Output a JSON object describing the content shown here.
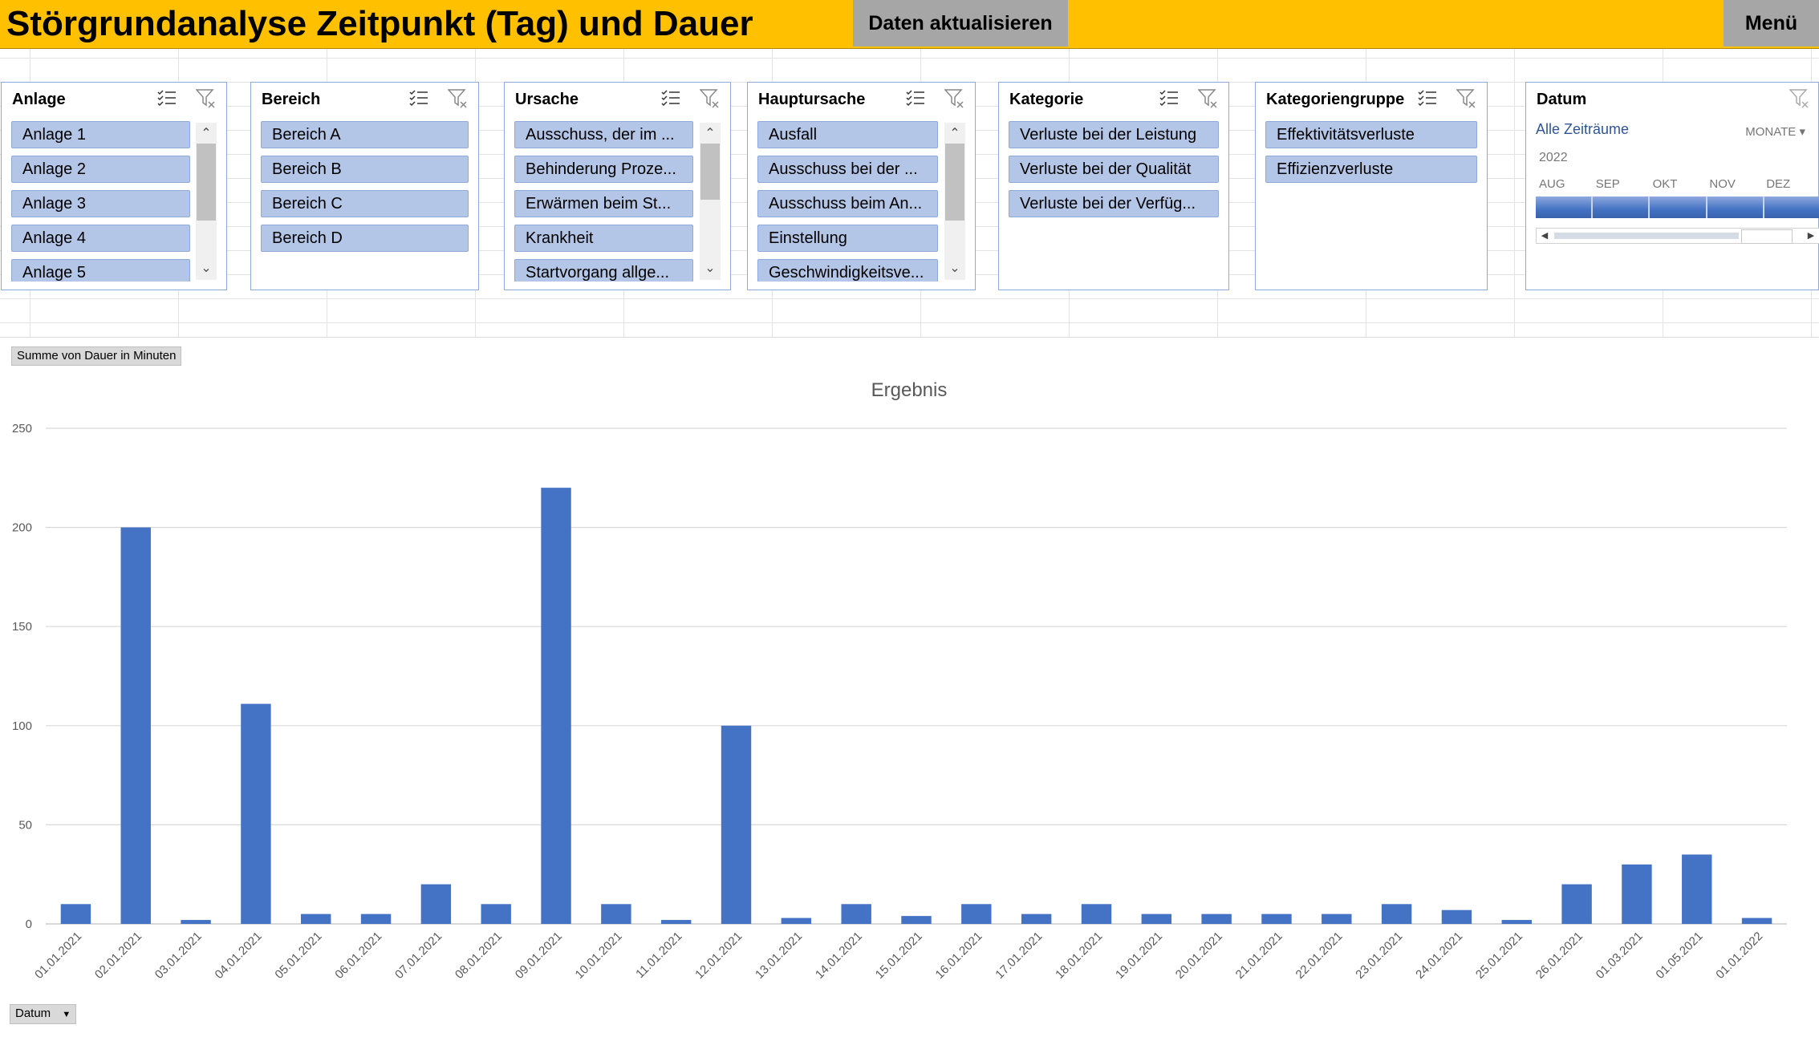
{
  "header": {
    "title": "Störgrundanalyse Zeitpunkt (Tag) und Dauer",
    "refresh_label": "Daten aktualisieren",
    "menu_label": "Menü",
    "bg_color": "#ffc000"
  },
  "slicers": {
    "anlage": {
      "title": "Anlage",
      "items": [
        "Anlage 1",
        "Anlage 2",
        "Anlage 3",
        "Anlage 4",
        "Anlage 5"
      ]
    },
    "bereich": {
      "title": "Bereich",
      "items": [
        "Bereich A",
        "Bereich B",
        "Bereich C",
        "Bereich D"
      ]
    },
    "ursache": {
      "title": "Ursache",
      "items": [
        "Ausschuss, der im ...",
        "Behinderung Proze...",
        "Erwärmen beim St...",
        "Krankheit",
        "Startvorgang allge..."
      ]
    },
    "hauptursache": {
      "title": "Hauptursache",
      "items": [
        "Ausfall",
        "Ausschuss bei der ...",
        "Ausschuss beim An...",
        "Einstellung",
        "Geschwindigkeitsve..."
      ]
    },
    "kategorie": {
      "title": "Kategorie",
      "items": [
        "Verluste bei der Leistung",
        "Verluste bei der Qualität",
        "Verluste bei der Verfüg..."
      ]
    },
    "kategoriengruppe": {
      "title": "Kategoriengruppe",
      "items": [
        "Effektivitätsverluste",
        "Effizienzverluste"
      ]
    }
  },
  "timeline": {
    "title": "Datum",
    "all_periods": "Alle Zeiträume",
    "level": "MONATE",
    "year": "2022",
    "months": [
      "AUG",
      "SEP",
      "OKT",
      "NOV",
      "DEZ"
    ]
  },
  "pivot": {
    "value_field": "Summe von Dauer in Minuten",
    "axis_field": "Datum"
  },
  "chart_data": {
    "type": "bar",
    "title": "Ergebnis",
    "xlabel": "",
    "ylabel": "",
    "ylim": [
      0,
      250
    ],
    "yticks": [
      0,
      50,
      100,
      150,
      200,
      250
    ],
    "grid": true,
    "color": "#4472c4",
    "categories": [
      "01.01.2021",
      "02.01.2021",
      "03.01.2021",
      "04.01.2021",
      "05.01.2021",
      "06.01.2021",
      "07.01.2021",
      "08.01.2021",
      "09.01.2021",
      "10.01.2021",
      "11.01.2021",
      "12.01.2021",
      "13.01.2021",
      "14.01.2021",
      "15.01.2021",
      "16.01.2021",
      "17.01.2021",
      "18.01.2021",
      "19.01.2021",
      "20.01.2021",
      "21.01.2021",
      "22.01.2021",
      "23.01.2021",
      "24.01.2021",
      "25.01.2021",
      "26.01.2021",
      "01.03.2021",
      "01.05.2021",
      "01.01.2022"
    ],
    "values": [
      10,
      200,
      2,
      111,
      5,
      5,
      20,
      10,
      220,
      10,
      2,
      100,
      3,
      10,
      4,
      10,
      5,
      10,
      5,
      5,
      5,
      5,
      10,
      7,
      2,
      20,
      30,
      35,
      3
    ]
  }
}
